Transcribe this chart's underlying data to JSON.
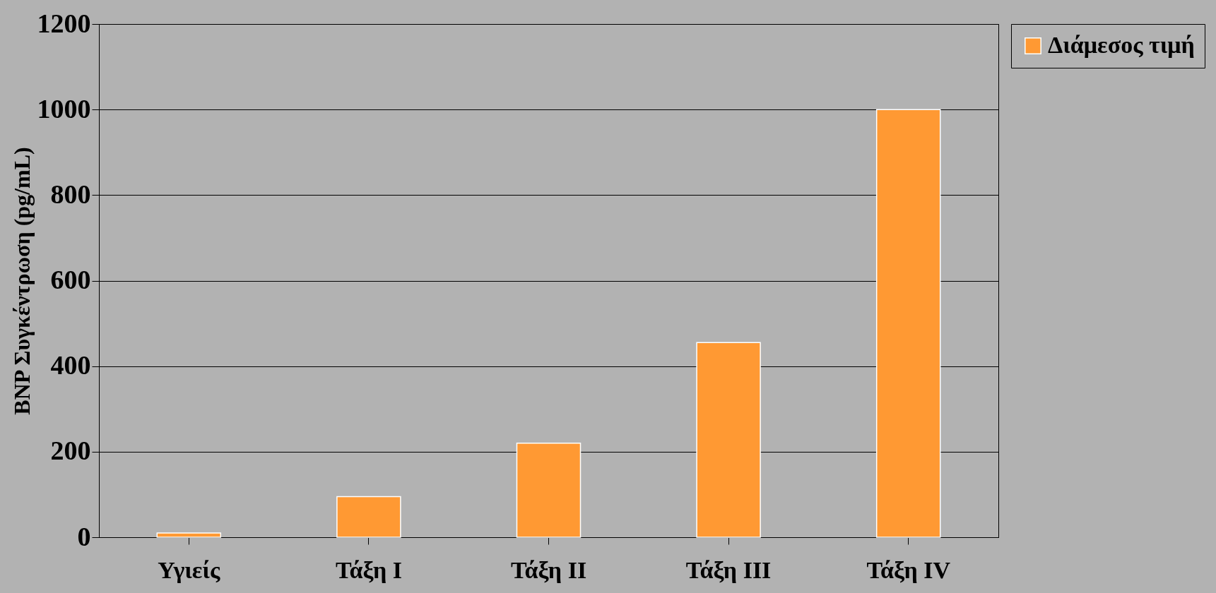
{
  "chart_data": {
    "type": "bar",
    "ylabel": "BNP Συγκέντρωση (pg/mL)",
    "categories": [
      "Υγιείς",
      "Τάξη I",
      "Τάξη II",
      "Τάξη III",
      "Τάξη IV"
    ],
    "series": [
      {
        "name": "Διάμεσος τιμή",
        "color": "#ff9933",
        "values": [
          10,
          95,
          220,
          455,
          1000
        ]
      }
    ],
    "ylim": [
      0,
      1200
    ],
    "yticks": [
      0,
      200,
      400,
      600,
      800,
      1000,
      1200
    ],
    "grid": "y",
    "legend": "right"
  }
}
